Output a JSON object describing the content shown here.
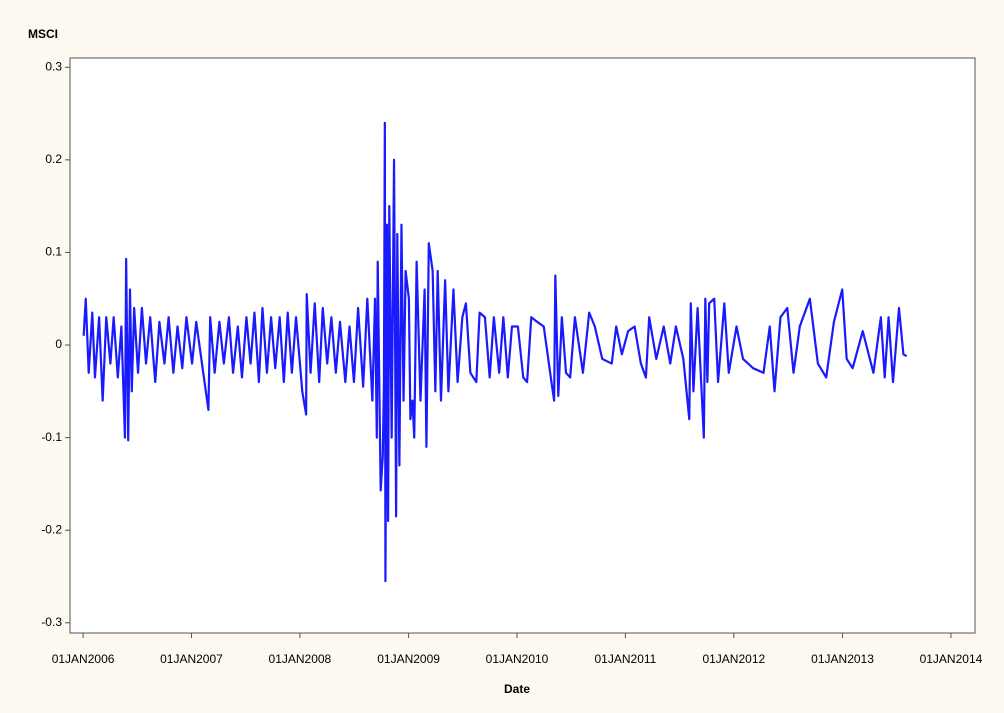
{
  "chart_data": {
    "type": "line",
    "y_label": "MSCI",
    "x_label": "Date",
    "x": [
      "2006-01-03",
      "2006-01-10",
      "2006-01-20",
      "2006-02-01",
      "2006-02-10",
      "2006-02-24",
      "2006-03-08",
      "2006-03-20",
      "2006-04-03",
      "2006-04-14",
      "2006-04-28",
      "2006-05-10",
      "2006-05-22",
      "2006-05-26",
      "2006-06-02",
      "2006-06-08",
      "2006-06-14",
      "2006-06-22",
      "2006-07-05",
      "2006-07-18",
      "2006-08-01",
      "2006-08-15",
      "2006-09-01",
      "2006-09-15",
      "2006-10-02",
      "2006-10-16",
      "2006-11-01",
      "2006-11-15",
      "2006-12-01",
      "2006-12-15",
      "2007-01-03",
      "2007-01-17",
      "2007-02-01",
      "2007-02-27",
      "2007-03-05",
      "2007-03-20",
      "2007-04-05",
      "2007-04-20",
      "2007-05-07",
      "2007-05-21",
      "2007-06-06",
      "2007-06-20",
      "2007-07-05",
      "2007-07-19",
      "2007-08-01",
      "2007-08-16",
      "2007-08-28",
      "2007-09-12",
      "2007-09-26",
      "2007-10-10",
      "2007-10-25",
      "2007-11-08",
      "2007-11-21",
      "2007-12-05",
      "2007-12-19",
      "2008-01-09",
      "2008-01-22",
      "2008-01-24",
      "2008-02-06",
      "2008-02-20",
      "2008-03-06",
      "2008-03-18",
      "2008-04-02",
      "2008-04-16",
      "2008-05-01",
      "2008-05-15",
      "2008-06-02",
      "2008-06-16",
      "2008-07-01",
      "2008-07-15",
      "2008-08-01",
      "2008-08-15",
      "2008-09-01",
      "2008-09-10",
      "2008-09-16",
      "2008-09-19",
      "2008-09-29",
      "2008-10-06",
      "2008-10-10",
      "2008-10-13",
      "2008-10-15",
      "2008-10-20",
      "2008-10-24",
      "2008-10-28",
      "2008-11-05",
      "2008-11-13",
      "2008-11-20",
      "2008-11-24",
      "2008-12-01",
      "2008-12-08",
      "2008-12-15",
      "2008-12-22",
      "2009-01-02",
      "2009-01-07",
      "2009-01-14",
      "2009-01-20",
      "2009-01-28",
      "2009-02-10",
      "2009-02-24",
      "2009-03-02",
      "2009-03-10",
      "2009-03-23",
      "2009-04-01",
      "2009-04-09",
      "2009-04-20",
      "2009-05-04",
      "2009-05-15",
      "2009-06-01",
      "2009-06-15",
      "2009-07-01",
      "2009-07-13",
      "2009-07-28",
      "2009-08-17",
      "2009-08-28",
      "2009-09-15",
      "2009-10-01",
      "2009-10-15",
      "2009-11-02",
      "2009-11-16",
      "2009-12-01",
      "2009-12-15",
      "2010-01-04",
      "2010-01-22",
      "2010-02-04",
      "2010-02-18",
      "2010-03-10",
      "2010-04-01",
      "2010-04-27",
      "2010-05-06",
      "2010-05-10",
      "2010-05-20",
      "2010-06-01",
      "2010-06-15",
      "2010-06-29",
      "2010-07-15",
      "2010-08-11",
      "2010-09-01",
      "2010-09-20",
      "2010-10-15",
      "2010-11-16",
      "2010-12-01",
      "2010-12-20",
      "2011-01-10",
      "2011-02-01",
      "2011-02-22",
      "2011-03-11",
      "2011-03-22",
      "2011-04-15",
      "2011-05-10",
      "2011-06-01",
      "2011-06-20",
      "2011-07-15",
      "2011-08-04",
      "2011-08-09",
      "2011-08-18",
      "2011-09-01",
      "2011-09-22",
      "2011-09-27",
      "2011-10-04",
      "2011-10-10",
      "2011-10-27",
      "2011-11-09",
      "2011-11-30",
      "2011-12-15",
      "2012-01-10",
      "2012-02-01",
      "2012-03-06",
      "2012-04-10",
      "2012-05-01",
      "2012-05-17",
      "2012-06-06",
      "2012-06-29",
      "2012-07-20",
      "2012-08-10",
      "2012-09-13",
      "2012-10-10",
      "2012-11-07",
      "2012-12-03",
      "2012-12-31",
      "2013-01-15",
      "2013-02-04",
      "2013-03-10",
      "2013-04-15",
      "2013-05-10",
      "2013-05-23",
      "2013-06-05",
      "2013-06-20",
      "2013-07-10",
      "2013-07-25",
      "2013-08-05"
    ],
    "series": [
      {
        "color": "#1a1aff",
        "values": [
          0.01,
          0.05,
          -0.03,
          0.035,
          -0.035,
          0.03,
          -0.06,
          0.03,
          -0.02,
          0.03,
          -0.035,
          0.02,
          -0.1,
          0.093,
          -0.103,
          0.06,
          -0.05,
          0.04,
          -0.03,
          0.04,
          -0.02,
          0.03,
          -0.04,
          0.025,
          -0.02,
          0.03,
          -0.03,
          0.02,
          -0.025,
          0.03,
          -0.02,
          0.025,
          -0.01,
          -0.07,
          0.03,
          -0.03,
          0.025,
          -0.02,
          0.03,
          -0.03,
          0.02,
          -0.035,
          0.03,
          -0.02,
          0.035,
          -0.04,
          0.04,
          -0.03,
          0.03,
          -0.025,
          0.03,
          -0.04,
          0.035,
          -0.03,
          0.03,
          -0.05,
          -0.075,
          0.055,
          -0.03,
          0.045,
          -0.04,
          0.04,
          -0.02,
          0.03,
          -0.03,
          0.025,
          -0.04,
          0.02,
          -0.04,
          0.04,
          -0.045,
          0.05,
          -0.06,
          0.05,
          -0.1,
          0.09,
          -0.157,
          -0.12,
          -0.04,
          0.24,
          -0.255,
          0.13,
          -0.19,
          0.15,
          -0.1,
          0.2,
          -0.185,
          0.12,
          -0.13,
          0.13,
          -0.06,
          0.08,
          0.05,
          -0.08,
          -0.06,
          -0.1,
          0.09,
          -0.06,
          0.06,
          -0.11,
          0.11,
          0.08,
          -0.05,
          0.08,
          -0.06,
          0.07,
          -0.05,
          0.06,
          -0.04,
          0.03,
          0.045,
          -0.03,
          -0.04,
          0.035,
          0.03,
          -0.035,
          0.03,
          -0.03,
          0.03,
          -0.035,
          0.02,
          0.02,
          -0.035,
          -0.04,
          0.03,
          0.025,
          0.02,
          -0.04,
          -0.06,
          0.075,
          -0.055,
          0.03,
          -0.03,
          -0.035,
          0.03,
          -0.03,
          0.035,
          0.02,
          -0.015,
          -0.02,
          0.02,
          -0.01,
          0.015,
          0.02,
          -0.02,
          -0.035,
          0.03,
          -0.015,
          0.02,
          -0.02,
          0.02,
          -0.015,
          -0.08,
          0.045,
          -0.05,
          0.04,
          -0.1,
          0.05,
          -0.04,
          0.045,
          0.05,
          -0.04,
          0.045,
          -0.03,
          0.02,
          -0.015,
          -0.025,
          -0.03,
          0.02,
          -0.05,
          0.03,
          0.04,
          -0.03,
          0.02,
          0.05,
          -0.02,
          -0.035,
          0.025,
          0.06,
          -0.015,
          -0.025,
          0.015,
          -0.03,
          0.03,
          -0.035,
          0.03,
          -0.04,
          0.04,
          -0.01,
          -0.012
        ]
      }
    ],
    "xlim": [
      "2005-11-18",
      "2014-03-23"
    ],
    "xticks": [
      {
        "value": "2006-01-01",
        "label": "01JAN2006"
      },
      {
        "value": "2007-01-01",
        "label": "01JAN2007"
      },
      {
        "value": "2008-01-01",
        "label": "01JAN2008"
      },
      {
        "value": "2009-01-01",
        "label": "01JAN2009"
      },
      {
        "value": "2010-01-01",
        "label": "01JAN2010"
      },
      {
        "value": "2011-01-01",
        "label": "01JAN2011"
      },
      {
        "value": "2012-01-01",
        "label": "01JAN2012"
      },
      {
        "value": "2013-01-01",
        "label": "01JAN2013"
      },
      {
        "value": "2014-01-01",
        "label": "01JAN2014"
      }
    ],
    "ylim": [
      -0.311,
      0.31
    ],
    "yticks": [
      -0.3,
      -0.2,
      -0.1,
      0,
      0.1,
      0.2,
      0.3
    ]
  }
}
